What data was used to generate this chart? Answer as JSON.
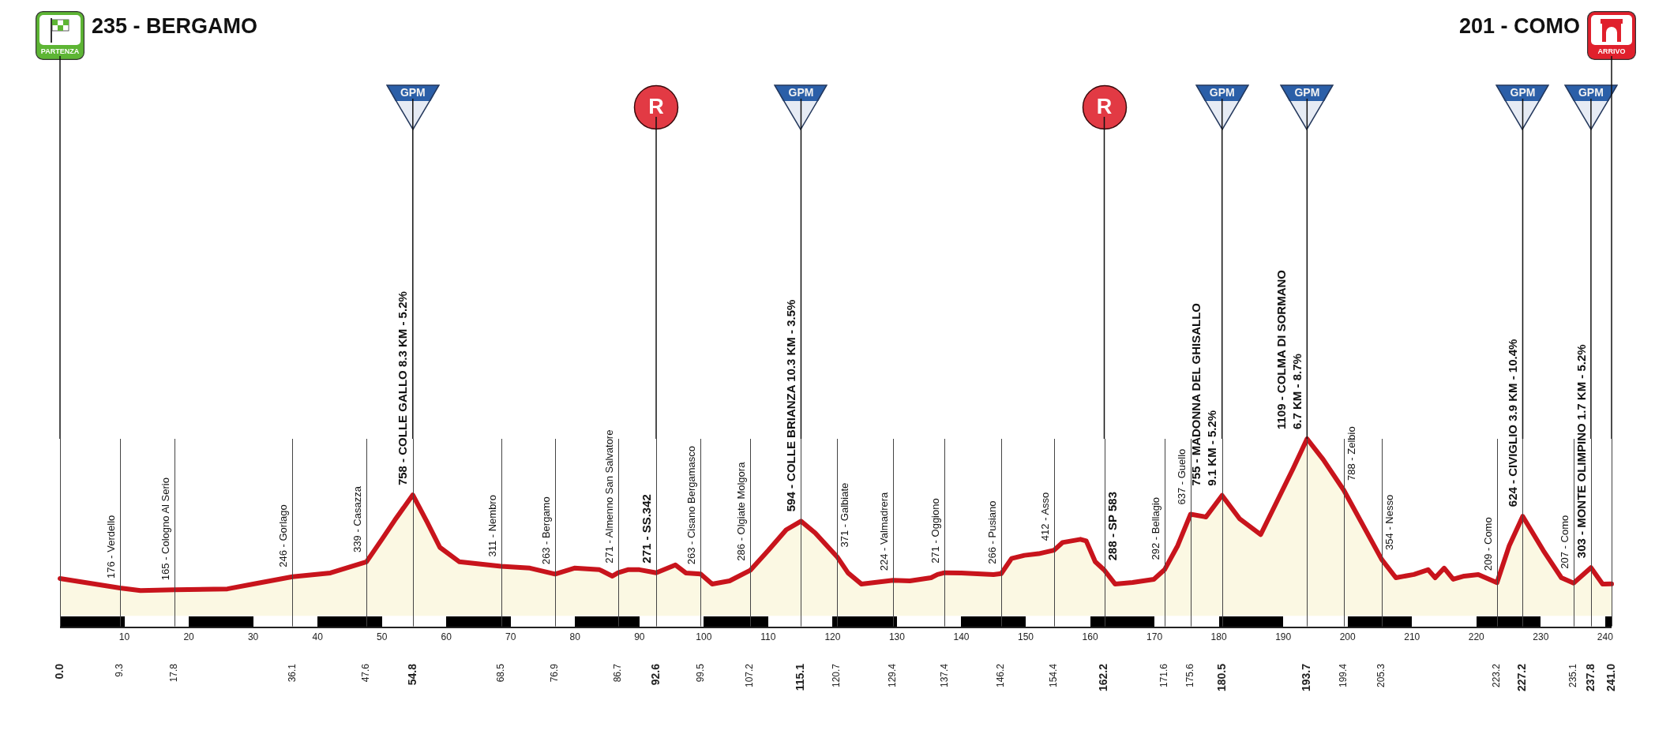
{
  "chart_data": {
    "type": "area",
    "x": [
      0,
      9.3,
      12.5,
      17.8,
      26,
      30,
      36.1,
      42,
      47.6,
      50,
      52,
      54.8,
      57,
      59,
      62,
      68.5,
      73,
      76.9,
      79.9,
      83.8,
      85.8,
      86.7,
      88.2,
      90,
      92.6,
      95.6,
      97.2,
      99.5,
      101.3,
      104,
      107.2,
      110,
      112.8,
      115.1,
      117.3,
      120.7,
      122.4,
      124.5,
      129.4,
      132,
      135.3,
      136.3,
      137.4,
      140,
      145,
      146.2,
      147.8,
      149.8,
      152,
      154.4,
      155.7,
      158.5,
      159.4,
      160.8,
      162.2,
      163.9,
      166.6,
      169.9,
      171.6,
      173.6,
      175.6,
      178,
      180.5,
      183.2,
      186.5,
      189.3,
      191.5,
      193.7,
      196.2,
      199.4,
      205.3,
      207.5,
      210.3,
      212.5,
      213.6,
      215,
      216.4,
      218.1,
      220.3,
      223.2,
      225.1,
      227.2,
      230.4,
      233.2,
      235.1,
      237.8,
      239.6,
      241
    ],
    "series": [
      {
        "color": "#c8141c",
        "values": [
          235,
          176,
          160,
          165,
          170,
          200,
          246,
          270,
          339,
          480,
          600,
          758,
          590,
          430,
          340,
          311,
          300,
          263,
          300,
          290,
          250,
          271,
          290,
          290,
          271,
          320,
          270,
          263,
          200,
          220,
          286,
          410,
          540,
          594,
          520,
          371,
          270,
          200,
          224,
          220,
          240,
          260,
          271,
          270,
          260,
          266,
          360,
          380,
          390,
          412,
          460,
          480,
          470,
          340,
          288,
          200,
          210,
          230,
          292,
          440,
          637,
          620,
          755,
          610,
          510,
          740,
          920,
          1109,
          980,
          788,
          354,
          240,
          260,
          290,
          240,
          300,
          230,
          250,
          260,
          209,
          440,
          624,
          410,
          240,
          207,
          303,
          200,
          201
        ],
        "value_labels": [
          null,
          "176 - Verdello",
          null,
          "165 - Cologno Al Serio",
          null,
          null,
          "246 - Gorlago",
          null,
          "339 - Casazza",
          null,
          null,
          "758 - COLLE GALLO 8.3 KM - 5.2%",
          null,
          null,
          null,
          "311 - Nembro",
          null,
          "263 - Bergamo",
          null,
          null,
          null,
          "271 - Almenno San Salvatore",
          null,
          null,
          "271 - SS.342",
          null,
          null,
          "263 - Cisano Bergamasco",
          null,
          null,
          "286 - Olgiate Molgora",
          null,
          null,
          "594 - COLLE BRIANZA 10.3 KM - 3.5%",
          null,
          "371 - Galbiate",
          null,
          null,
          "224 - Valmadrera",
          null,
          null,
          null,
          "271 - Oggiono",
          null,
          null,
          "266 - Pusiano",
          null,
          null,
          null,
          "412 - Asso",
          null,
          null,
          null,
          null,
          "288 - SP 583",
          null,
          null,
          null,
          "292 - Bellagio",
          null,
          "637 - Guello",
          null,
          "755 - MADONNA DEL GHISALLO\n9.1 KM - 5.2%",
          null,
          null,
          null,
          null,
          "1109 - COLMA DI SORMANO\n6.7 KM - 8.7%",
          null,
          "788 - Zelbio",
          "354 - Nesso",
          null,
          null,
          null,
          null,
          null,
          null,
          null,
          null,
          "209 - Como",
          null,
          "624 - CIVIGLIO 3.9 KM - 10.4%",
          null,
          null,
          "207 - Como",
          "303 - MONTE OLIMPINO 1.7 KM - 5.2%",
          null,
          null
        ]
      }
    ],
    "xlim": [
      0,
      241
    ],
    "xticks": [
      {
        "value": 0,
        "label": "0.0"
      },
      9.3,
      17.8,
      36.1,
      47.6,
      54.8,
      68.5,
      76.9,
      86.7,
      92.6,
      99.5,
      107.2,
      115.1,
      120.7,
      129.4,
      137.4,
      146.2,
      154.4,
      162.2,
      171.6,
      175.6,
      180.5,
      193.7,
      199.4,
      205.3,
      223.2,
      227.2,
      235.1,
      237.8,
      {
        "value": 241,
        "label": "241.0"
      }
    ],
    "x2lim": [
      0,
      241
    ],
    "x2ticks": [
      10,
      20,
      30,
      40,
      50,
      60,
      70,
      80,
      90,
      100,
      110,
      120,
      130,
      140,
      150,
      160,
      170,
      180,
      190,
      200,
      210,
      220,
      230,
      240
    ],
    "tick_labels": "x",
    "grid": "x",
    "ref_lines": [
      {
        "axis": "x",
        "value": 0,
        "label": "PARTENZA",
        "color": "#111111"
      },
      {
        "axis": "x",
        "value": 54.8,
        "label": "GPM",
        "color": "#111111"
      },
      {
        "axis": "x",
        "value": 92.6,
        "label": "R",
        "color": "#111111"
      },
      {
        "axis": "x",
        "value": 115.1,
        "label": "GPM",
        "color": "#111111"
      },
      {
        "axis": "x",
        "value": 162.2,
        "label": "R",
        "color": "#111111"
      },
      {
        "axis": "x",
        "value": 180.5,
        "label": "GPM",
        "color": "#111111"
      },
      {
        "axis": "x",
        "value": 193.7,
        "label": "GPM",
        "color": "#111111"
      },
      {
        "axis": "x",
        "value": 227.2,
        "label": "GPM",
        "color": "#111111"
      },
      {
        "axis": "x",
        "value": 237.8,
        "label": "GPM",
        "color": "#111111"
      },
      {
        "axis": "x",
        "value": 241,
        "label": "ARRIVO",
        "color": "#111111"
      }
    ],
    "annotations": [
      "235 - BERGAMO",
      "201 - COMO"
    ]
  }
}
